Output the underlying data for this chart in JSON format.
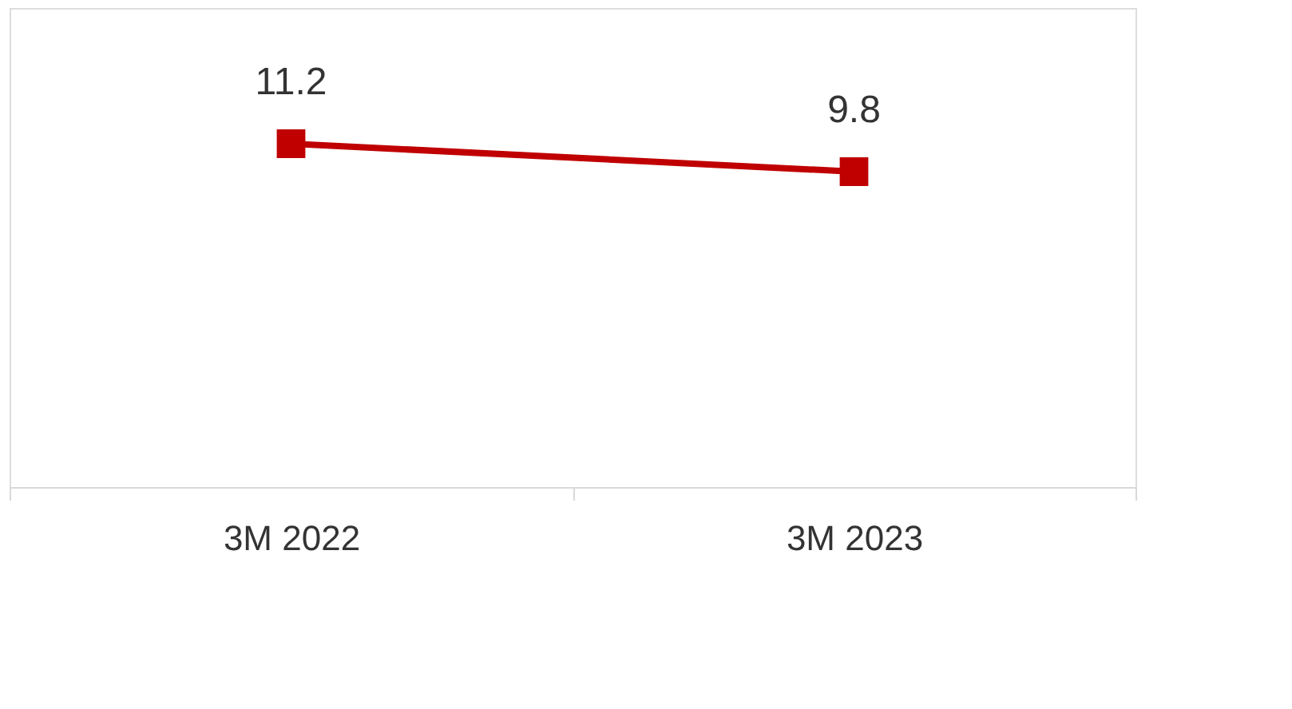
{
  "chart_data": {
    "type": "line",
    "categories": [
      "3M 2022",
      "3M 2023"
    ],
    "series": [
      {
        "color": "#c00000",
        "values": [
          11.2,
          9.8
        ]
      }
    ],
    "marker": "square",
    "line_style": "solid",
    "data_labels": true,
    "grid": false,
    "tick_labels": "x"
  }
}
